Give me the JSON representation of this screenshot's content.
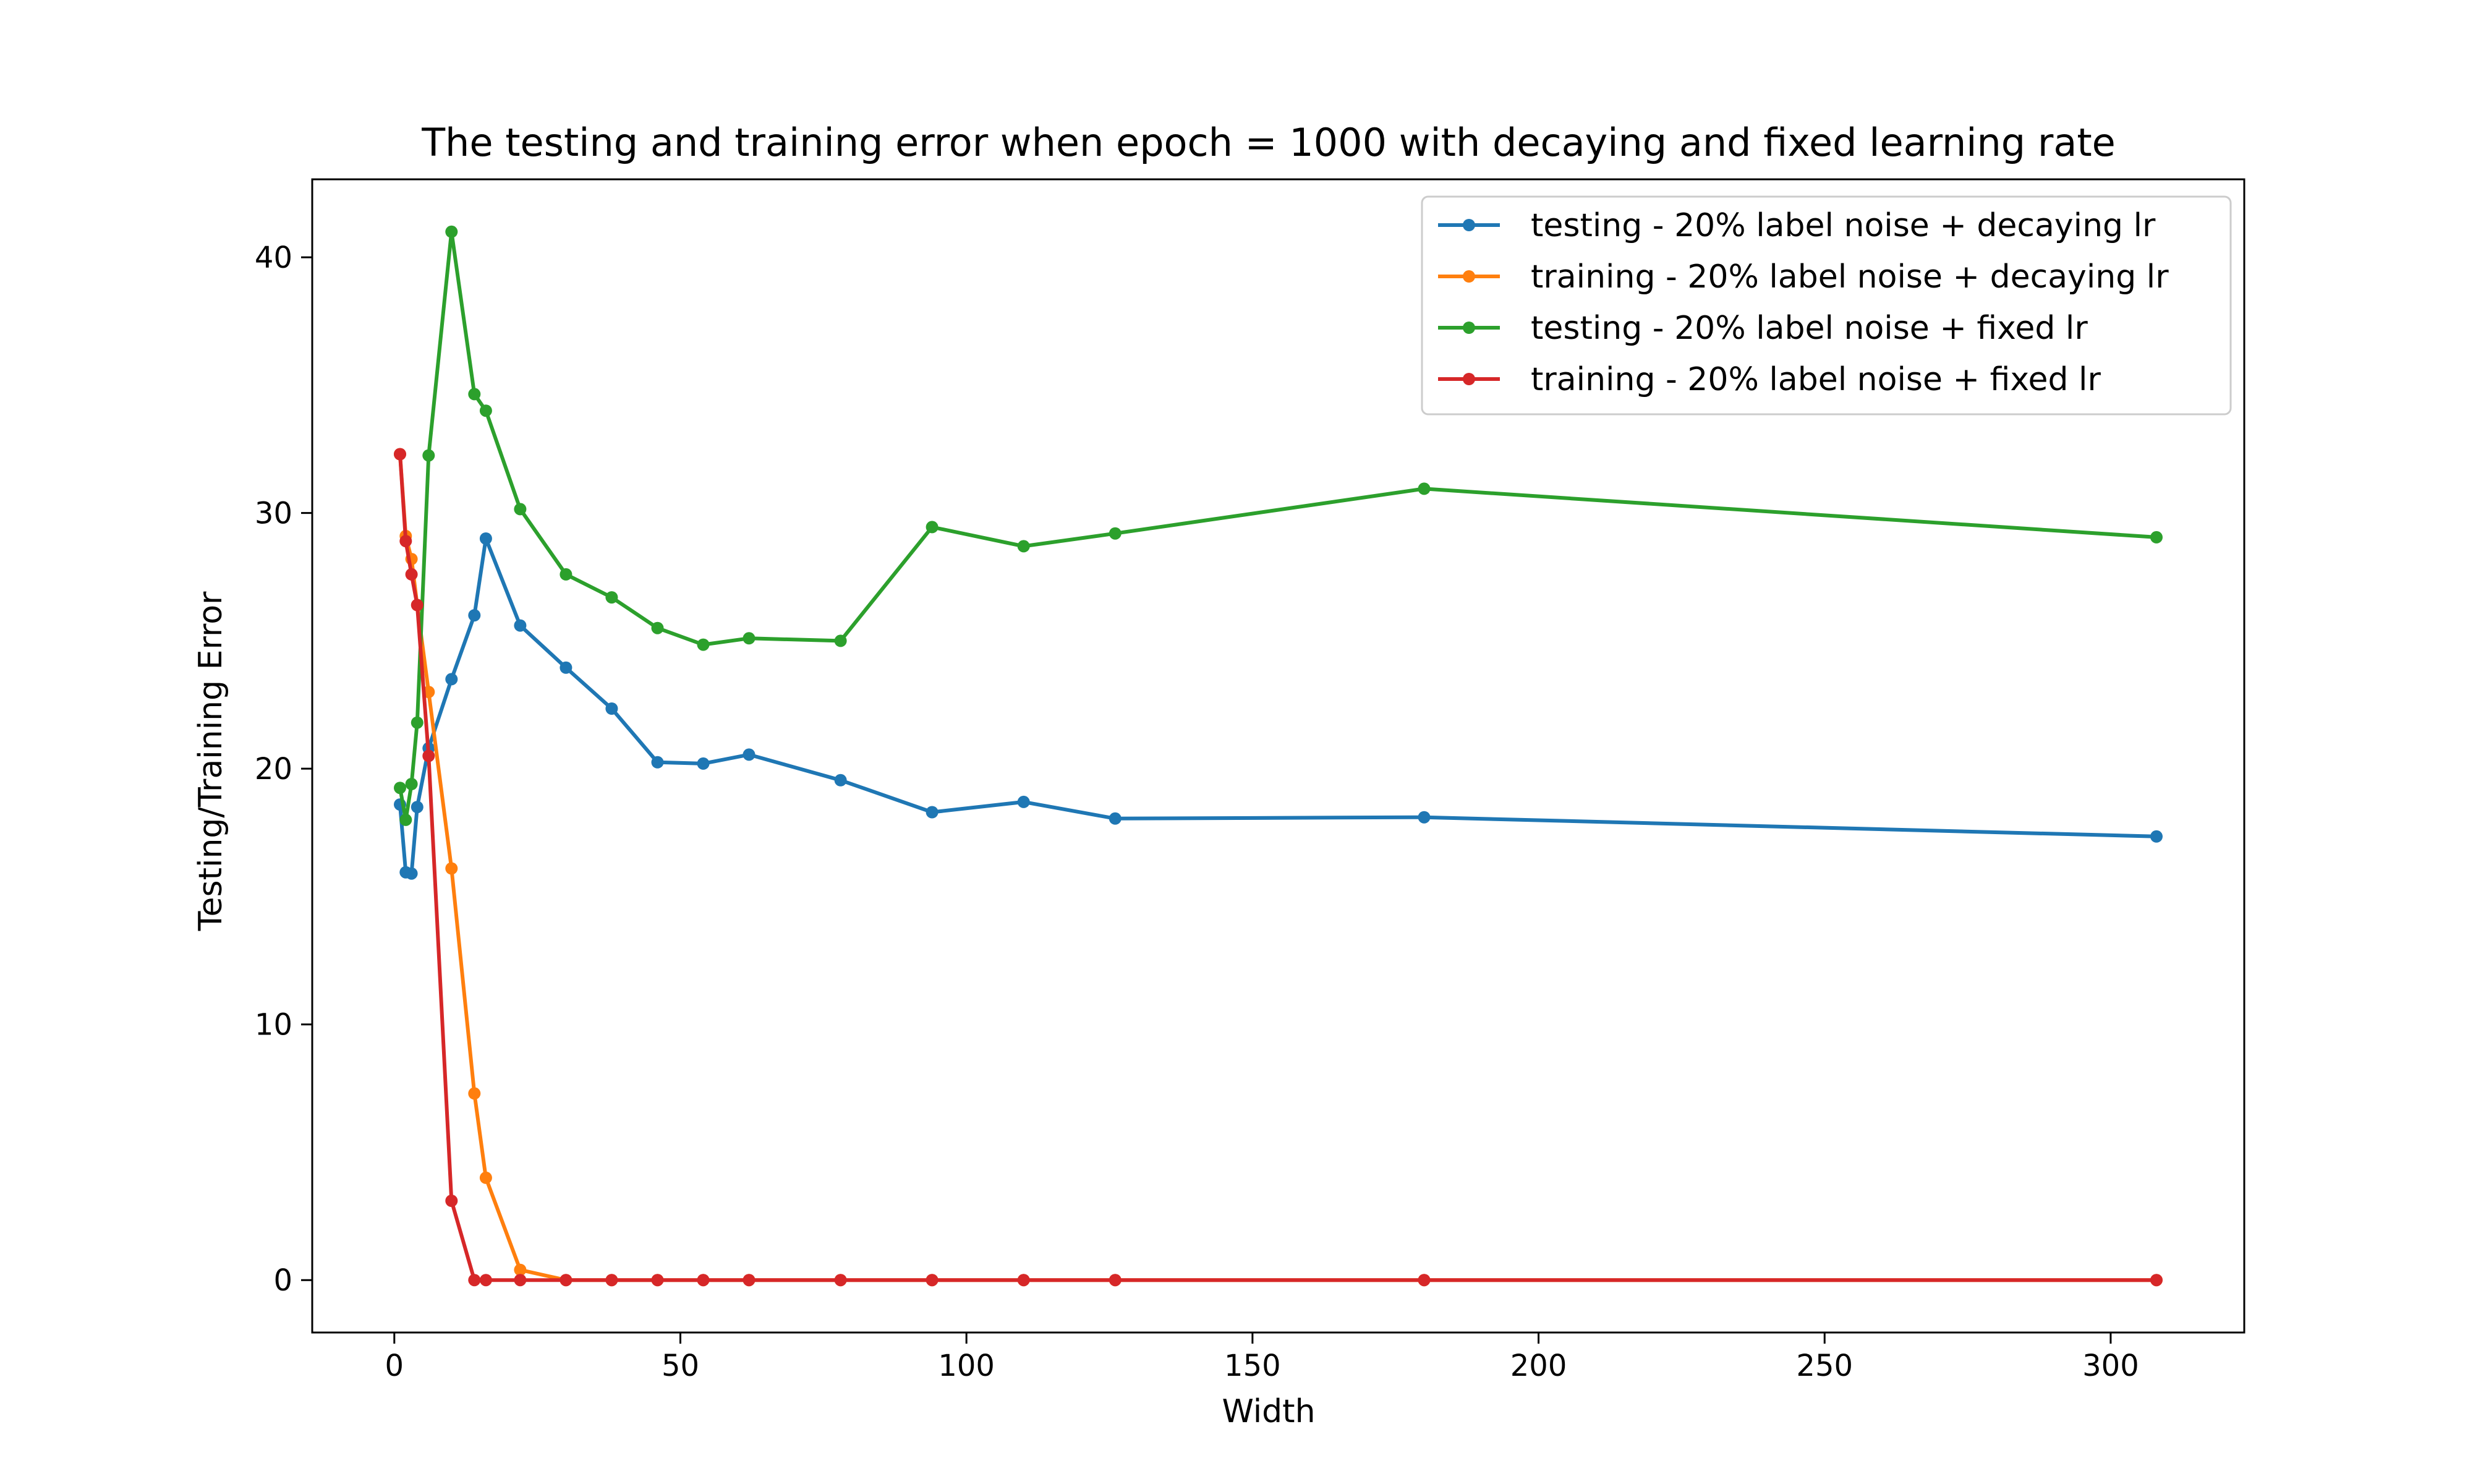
{
  "chart_data": {
    "type": "line",
    "title": "The testing and training error when epoch = 1000 with decaying and fixed learning rate",
    "xlabel": "Width",
    "ylabel": "Testing/Training Error",
    "xlim": [
      -14.35,
      323.35
    ],
    "ylim": [
      -2.05,
      43.05
    ],
    "xticks": [
      0,
      50,
      100,
      150,
      200,
      250,
      300
    ],
    "yticks": [
      0,
      10,
      20,
      30,
      40
    ],
    "grid": false,
    "legend_position": "top-right",
    "x": [
      1,
      2,
      3,
      4,
      6,
      10,
      14,
      16,
      22,
      30,
      38,
      46,
      54,
      62,
      78,
      94,
      110,
      126,
      180,
      308
    ],
    "series": [
      {
        "name": "testing - 20% label noise + decaying lr",
        "color": "#1f77b4",
        "values": [
          18.6,
          15.95,
          15.9,
          18.5,
          20.8,
          23.5,
          26.0,
          29.0,
          25.6,
          23.95,
          22.35,
          20.25,
          20.2,
          20.55,
          19.55,
          18.3,
          18.7,
          18.05,
          18.1,
          17.35
        ]
      },
      {
        "name": "training - 20% label noise + decaying lr",
        "color": "#ff7f0e",
        "values": [
          32.3,
          29.1,
          28.2,
          26.4,
          23.0,
          16.1,
          7.3,
          4.0,
          0.4,
          0.0,
          0.0,
          0.0,
          0.0,
          0.0,
          0.0,
          0.0,
          0.0,
          0.0,
          0.0,
          0.0
        ]
      },
      {
        "name": "testing - 20% label noise + fixed lr",
        "color": "#2ca02c",
        "values": [
          19.25,
          18.0,
          19.4,
          21.8,
          32.25,
          41.0,
          34.65,
          34.0,
          30.15,
          27.6,
          26.7,
          25.5,
          24.85,
          25.1,
          25.0,
          29.45,
          28.7,
          29.2,
          30.95,
          29.05
        ]
      },
      {
        "name": "training - 20% label noise + fixed lr",
        "color": "#d62728",
        "values": [
          32.3,
          28.9,
          27.6,
          26.4,
          20.5,
          3.1,
          0.0,
          0.0,
          0.0,
          0.0,
          0.0,
          0.0,
          0.0,
          0.0,
          0.0,
          0.0,
          0.0,
          0.0,
          0.0,
          0.0
        ]
      }
    ]
  }
}
